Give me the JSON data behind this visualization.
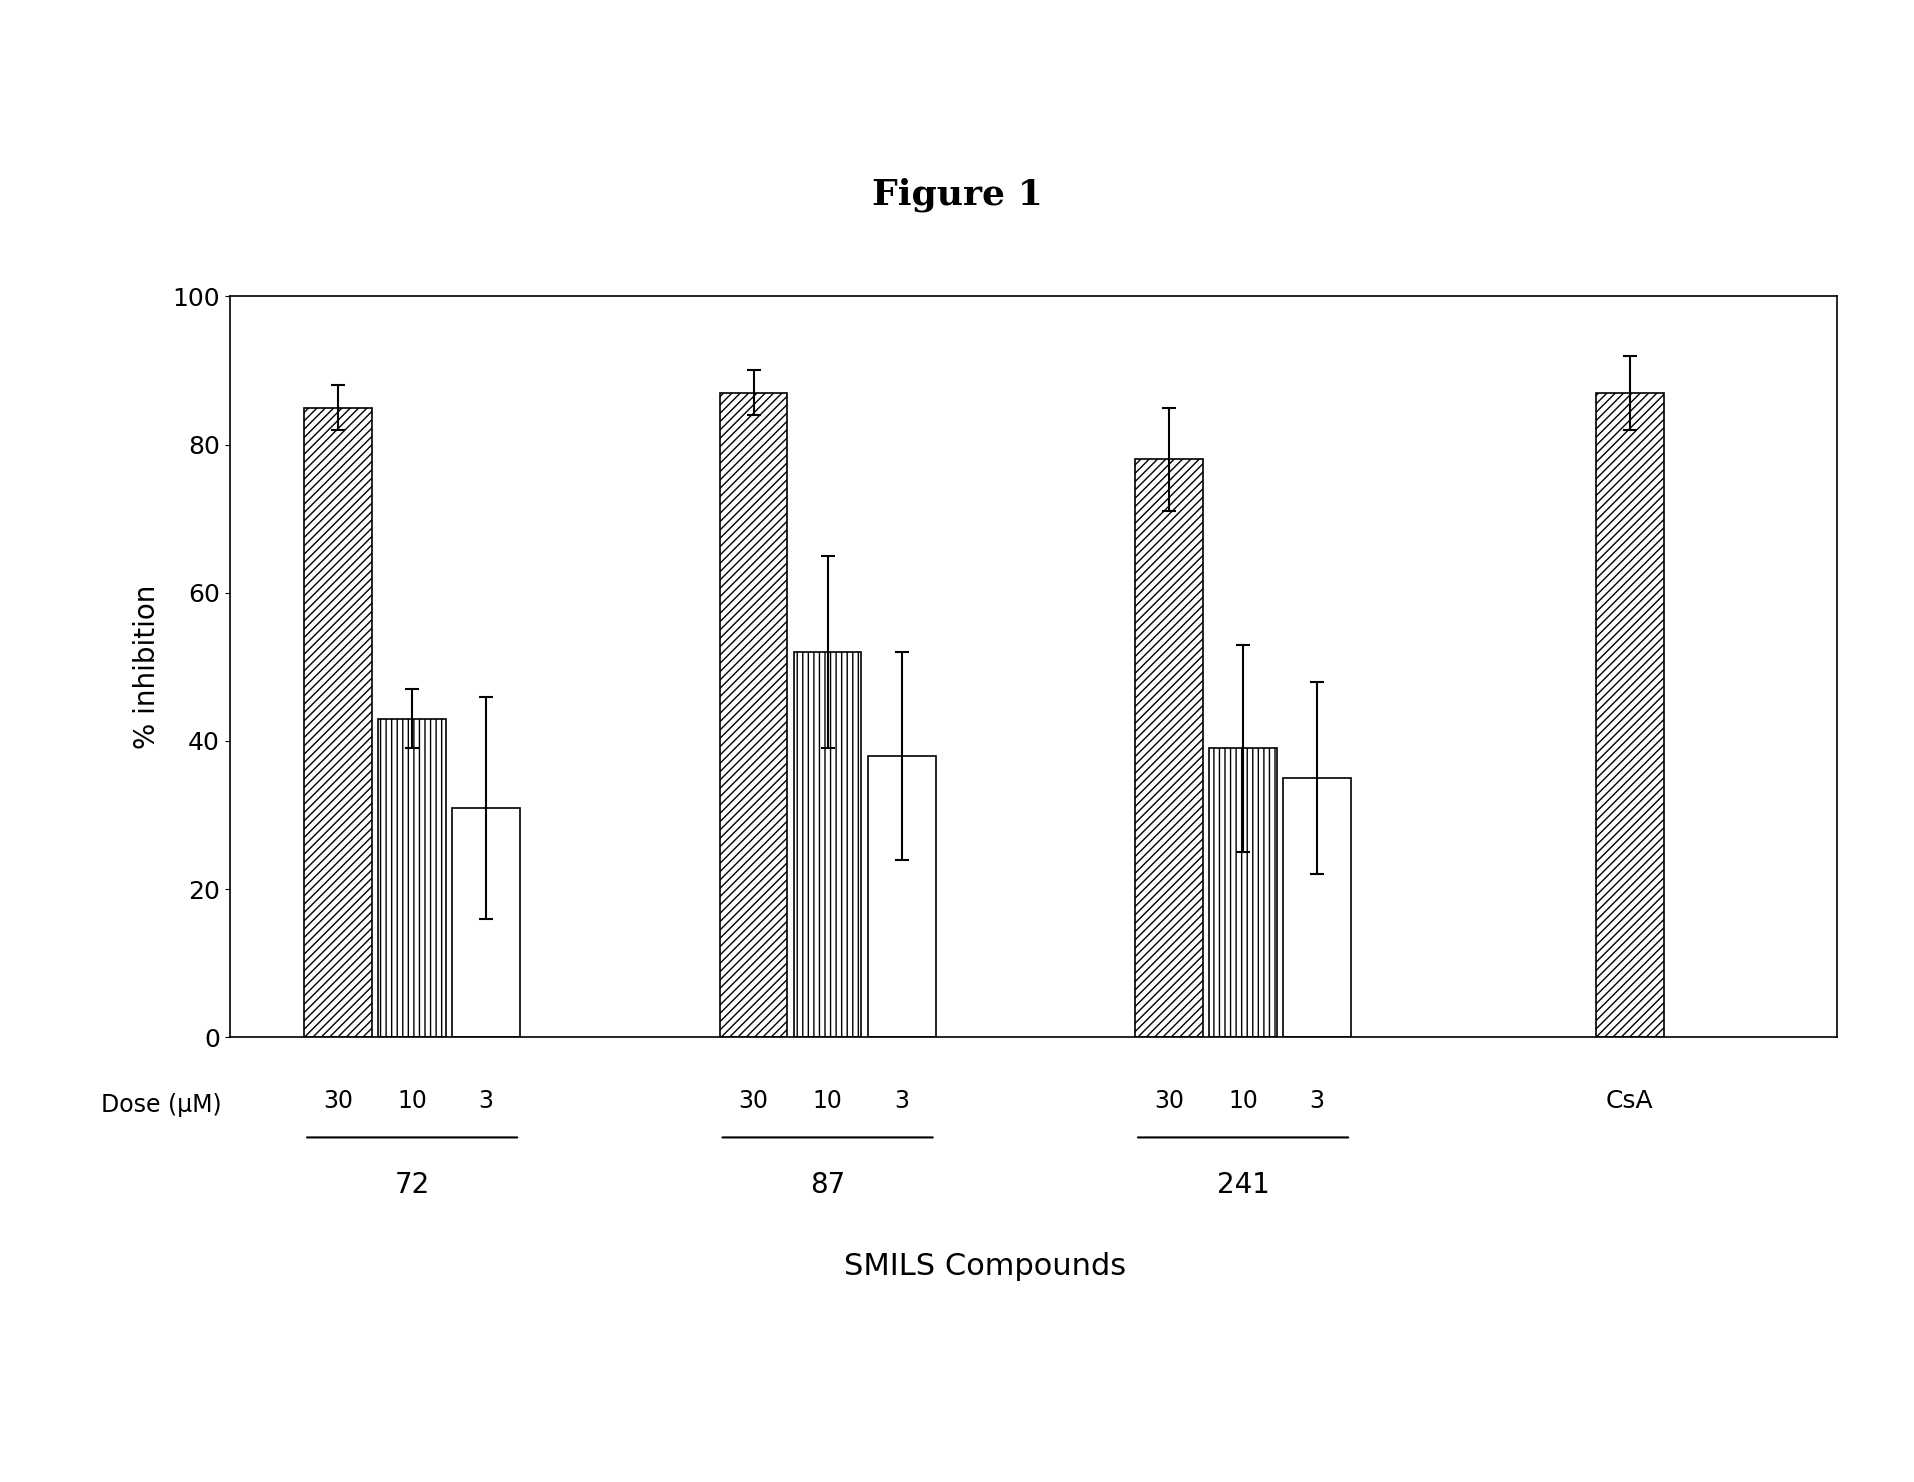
{
  "title": "Figure 1",
  "xlabel": "SMILS Compounds",
  "ylabel": "% inhibition",
  "ylim": [
    0,
    100
  ],
  "yticks": [
    0,
    20,
    40,
    60,
    80,
    100
  ],
  "bar_values": {
    "72_30": 85,
    "72_10": 43,
    "72_3": 31,
    "87_30": 87,
    "87_10": 52,
    "87_3": 38,
    "241_30": 78,
    "241_10": 39,
    "241_3": 35,
    "CsA": 87
  },
  "bar_errors": {
    "72_30": 3,
    "72_10": 4,
    "72_3": 15,
    "87_30": 3,
    "87_10": 13,
    "87_3": 14,
    "241_30": 7,
    "241_10": 14,
    "241_3": 13,
    "CsA": 5
  },
  "dose_labels": [
    "30",
    "10",
    "3"
  ],
  "compound_labels": [
    "72",
    "87",
    "241"
  ],
  "csa_label": "CsA",
  "dose_label_prefix": "Dose (μM)",
  "background_color": "#ffffff",
  "bar_edge_color": "#000000",
  "hatch_diagonal": "////",
  "hatch_vertical": "|||",
  "hatch_horizontal": "===",
  "title_fontsize": 26,
  "axis_label_fontsize": 20,
  "tick_fontsize": 18,
  "dose_fontsize": 17,
  "compound_fontsize": 20,
  "bar_width": 0.75,
  "group_starts": [
    1.2,
    5.8,
    10.4,
    15.5
  ],
  "bar_spacing": 0.82,
  "xlim": [
    0,
    17.8
  ]
}
